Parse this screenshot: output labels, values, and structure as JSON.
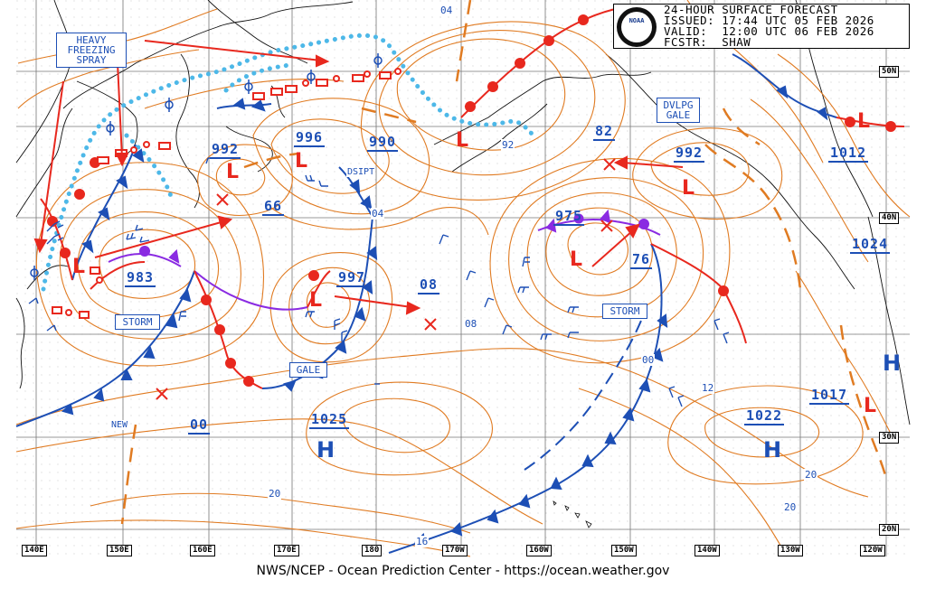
{
  "header": {
    "line1": "24-HOUR SURFACE FORECAST",
    "line2": "ISSUED: 17:44 UTC 05 FEB 2026",
    "line3": "VALID:  12:00 UTC 06 FEB 2026",
    "line4": "FCSTR:  SHAW",
    "logo_text": "NOAA"
  },
  "footer": "NWS/NCEP - Ocean Prediction Center - https://ocean.weather.gov",
  "longitude_labels": [
    "140E",
    "150E",
    "160E",
    "170E",
    "180",
    "170W",
    "160W",
    "150W",
    "140W",
    "130W",
    "120W"
  ],
  "latitude_labels": [
    "50N",
    "40N",
    "30N",
    "20N"
  ],
  "warnings": {
    "heavy_freezing_spray": "HEAVY\nFREEZING\nSPRAY",
    "storm_w": "STORM",
    "storm_e": "STORM",
    "gale_c": "GALE",
    "dvlpg_gale": "DVLPG\nGALE"
  },
  "pressures": {
    "p983": "983",
    "p992w": "992",
    "p66": "66",
    "p996": "996",
    "p990": "990",
    "p997": "997",
    "p08": "08",
    "p975": "975",
    "p76": "76",
    "p82": "82",
    "p992e": "992",
    "p1012": "1012",
    "p1024": "1024",
    "p1017": "1017",
    "p1025": "1025",
    "p1022": "1022",
    "p00": "00"
  },
  "system_labels": {
    "dsipt": "DSIPT",
    "new": "NEW",
    "high": "H",
    "low": "L"
  },
  "isobar_labels": [
    "04",
    "04",
    "08",
    "00",
    "12",
    "20",
    "20",
    "20",
    "16",
    "92"
  ],
  "colors": {
    "isobar": "#e07b22",
    "warm_front": "#e8281e",
    "cold_front": "#1d4fb5",
    "occluded_front": "#8a2be2",
    "ice_edge": "#4db8e8",
    "land": "#000000"
  }
}
